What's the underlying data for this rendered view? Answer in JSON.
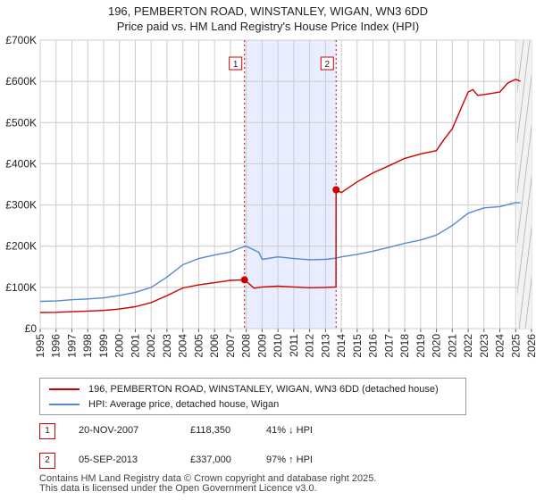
{
  "title_line1": "196, PEMBERTON ROAD, WINSTANLEY, WIGAN, WN3 6DD",
  "title_line2": "Price paid vs. HM Land Registry's House Price Index (HPI)",
  "colors": {
    "property": "#cc0000",
    "hpi": "#5588cc",
    "shade": "#e8eeff",
    "marker": "#cc0000"
  },
  "chart_data": {
    "type": "line",
    "title": "196, PEMBERTON ROAD, WINSTANLEY, WIGAN, WN3 6DD — Price paid vs. HM Land Registry's House Price Index (HPI)",
    "xlabel": "",
    "ylabel": "",
    "xlim": [
      1995,
      2026
    ],
    "ylim": [
      0,
      700000
    ],
    "grid": true,
    "legend_position": "below",
    "y_ticks": [
      {
        "value": 0,
        "label": "£0"
      },
      {
        "value": 100000,
        "label": "£100K"
      },
      {
        "value": 200000,
        "label": "£200K"
      },
      {
        "value": 300000,
        "label": "£300K"
      },
      {
        "value": 400000,
        "label": "£400K"
      },
      {
        "value": 500000,
        "label": "£500K"
      },
      {
        "value": 600000,
        "label": "£600K"
      },
      {
        "value": 700000,
        "label": "£700K"
      }
    ],
    "x_ticks": [
      "1995",
      "1996",
      "1997",
      "1998",
      "1999",
      "2000",
      "2001",
      "2002",
      "2003",
      "2004",
      "2005",
      "2006",
      "2007",
      "2008",
      "2009",
      "2010",
      "2011",
      "2012",
      "2013",
      "2014",
      "2015",
      "2016",
      "2017",
      "2018",
      "2019",
      "2020",
      "2021",
      "2022",
      "2023",
      "2024",
      "2025",
      "2026"
    ],
    "shaded_range": [
      2007.89,
      2013.67
    ],
    "forecast_start": 2025.1,
    "series": [
      {
        "name": "196, PEMBERTON ROAD, WINSTANLEY, WIGAN, WN3 6DD (detached house)",
        "color": "#cc0000",
        "x": [
          1995,
          1996,
          1997,
          1998,
          1999,
          2000,
          2001,
          2002,
          2003,
          2004,
          2005,
          2006,
          2007,
          2007.89,
          2008.5,
          2009,
          2010,
          2011,
          2012,
          2013,
          2013.66,
          2013.67,
          2014,
          2015,
          2016,
          2017,
          2018,
          2019,
          2020,
          2020.5,
          2021,
          2022,
          2022.3,
          2022.6,
          2023,
          2024,
          2024.5,
          2025,
          2025.3
        ],
        "values": [
          39000,
          39500,
          41000,
          42500,
          44000,
          47500,
          53000,
          63000,
          80000,
          98500,
          106000,
          111500,
          117000,
          118350,
          98000,
          101000,
          103000,
          101000,
          99000,
          100000,
          101000,
          337000,
          330000,
          356000,
          378000,
          395000,
          413000,
          424000,
          432000,
          460000,
          485000,
          574000,
          580000,
          566000,
          568000,
          574000,
          596000,
          605000,
          600000
        ]
      },
      {
        "name": "HPI: Average price, detached house, Wigan",
        "color": "#5588cc",
        "x": [
          1995,
          1996,
          1997,
          1998,
          1999,
          2000,
          2001,
          2002,
          2003,
          2004,
          2005,
          2006,
          2007,
          2007.5,
          2008,
          2008.8,
          2009,
          2010,
          2011,
          2012,
          2013,
          2013.67,
          2014,
          2015,
          2016,
          2017,
          2018,
          2019,
          2020,
          2021,
          2022,
          2023,
          2024,
          2025,
          2025.3
        ],
        "values": [
          66000,
          67000,
          70000,
          72000,
          74500,
          80500,
          88000,
          100000,
          125000,
          155000,
          170000,
          178500,
          186000,
          194000,
          200000,
          185000,
          168000,
          174000,
          170000,
          167000,
          168000,
          171000,
          174000,
          180000,
          188000,
          197000,
          207000,
          215000,
          227000,
          250000,
          280000,
          293000,
          296000,
          306000,
          305000
        ]
      }
    ],
    "annotations": [
      {
        "label": "1",
        "x": 2007.89,
        "value": 118350
      },
      {
        "label": "2",
        "x": 2013.67,
        "value": 337000
      }
    ]
  },
  "legend": {
    "property_label": "196, PEMBERTON ROAD, WINSTANLEY, WIGAN, WN3 6DD (detached house)",
    "hpi_label": "HPI: Average price, detached house, Wigan"
  },
  "sales": [
    {
      "num": "1",
      "date": "20-NOV-2007",
      "price": "£118,350",
      "hpi": "41% ↓ HPI"
    },
    {
      "num": "2",
      "date": "05-SEP-2013",
      "price": "£337,000",
      "hpi": "97% ↑ HPI"
    }
  ],
  "footer_line1": "Contains HM Land Registry data © Crown copyright and database right 2025.",
  "footer_line2": "This data is licensed under the Open Government Licence v3.0."
}
